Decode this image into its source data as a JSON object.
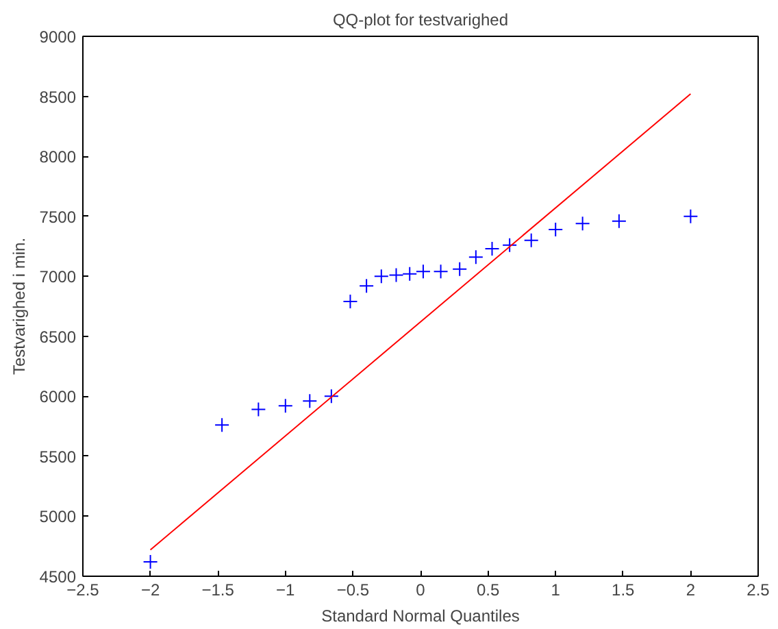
{
  "chart_data": {
    "type": "scatter",
    "title": "QQ-plot for testvarighed",
    "xlabel": "Standard Normal Quantiles",
    "ylabel": "Testvarighed i min.",
    "xlim": [
      -2.5,
      2.5
    ],
    "xticks": [
      -2.5,
      -2,
      -1.5,
      -1,
      -0.5,
      0,
      0.5,
      1,
      1.5,
      2,
      2.5
    ],
    "ylim": [
      4500,
      9000
    ],
    "yticks": [
      4500,
      5000,
      5500,
      6000,
      6500,
      7000,
      7500,
      8000,
      8500,
      9000
    ],
    "grid": false,
    "series": [
      {
        "marker": "cross",
        "color": "#0000ff",
        "x": [
          -2.0,
          -1.47,
          -1.2,
          -1.0,
          -0.82,
          -0.66,
          -0.52,
          -0.4,
          -0.29,
          -0.18,
          -0.08,
          0.02,
          0.15,
          0.29,
          0.41,
          0.53,
          0.66,
          0.82,
          1.0,
          1.2,
          1.47,
          2.0
        ],
        "values": [
          4620,
          5760,
          5890,
          5920,
          5960,
          6000,
          6790,
          6920,
          7000,
          7010,
          7020,
          7040,
          7040,
          7060,
          7160,
          7230,
          7260,
          7300,
          7390,
          7440,
          7460,
          7500
        ]
      },
      {
        "type": "line",
        "line_style": "solid",
        "color": "#ff0000",
        "x": [
          -2.0,
          2.0
        ],
        "values": [
          4720,
          8520
        ]
      }
    ]
  }
}
